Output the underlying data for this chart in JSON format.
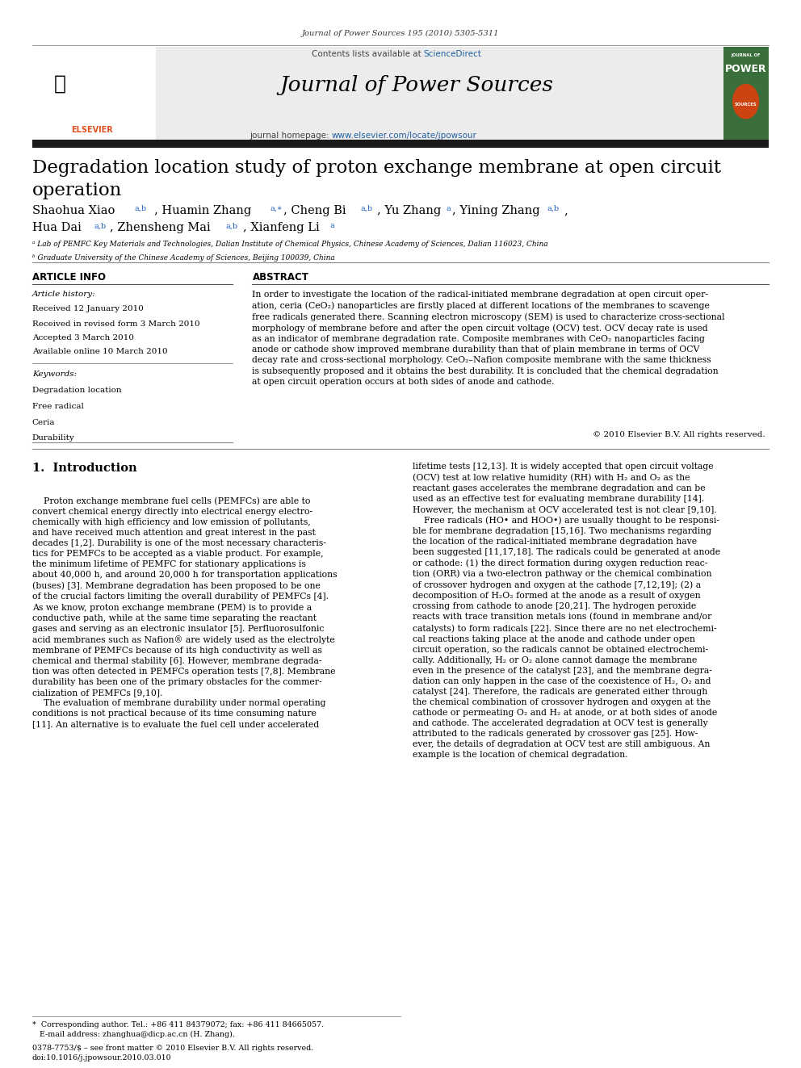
{
  "journal_ref": "Journal of Power Sources 195 (2010) 5305-5311",
  "header_bg": "#ececec",
  "contents_text": "Contents lists available at ",
  "sciencedirect_text": "ScienceDirect",
  "sciencedirect_color": "#2060a0",
  "journal_title": "Journal of Power Sources",
  "homepage_text": "journal homepage: ",
  "homepage_url": "www.elsevier.com/locate/jpowsour",
  "homepage_url_color": "#2060a0",
  "dark_bar_color": "#1a1a1a",
  "elsevier_orange": "#e05020",
  "elsevier_green": "#3a6e3a",
  "article_info_header": "ARTICLE INFO",
  "abstract_header": "ABSTRACT",
  "keywords": [
    "Degradation location",
    "Free radical",
    "Ceria",
    "Durability"
  ],
  "copyright_text": "© 2010 Elsevier B.V. All rights reserved.",
  "footnote_text": "*  Corresponding author. Tel.: +86 411 84379072; fax: +86 411 84665057.\n   E-mail address: zhanghua@dicp.ac.cn (H. Zhang).",
  "bottom_text": "0378-7753/$ – see front matter © 2010 Elsevier B.V. All rights reserved.\ndoi:10.1016/j.jpowsour.2010.03.010",
  "bg_color": "#ffffff",
  "text_color": "#000000"
}
